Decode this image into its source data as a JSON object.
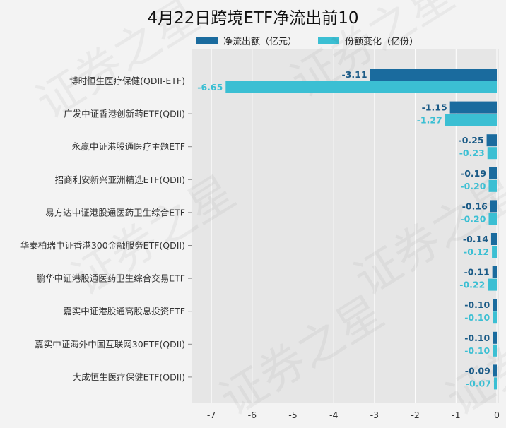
{
  "chart_data": {
    "type": "bar",
    "orientation": "horizontal",
    "title": "4月22日跨境ETF净流出前10",
    "categories": [
      "博时恒生医疗保健(QDII-ETF)",
      "广发中证香港创新药ETF(QDII)",
      "永赢中证港股通医疗主题ETF",
      "招商利安新兴亚洲精选ETF(QDII)",
      "易方达中证港股通医药卫生综合ETF",
      "华泰柏瑞中证香港300金融服务ETF(QDII)",
      "鹏华中证港股通医药卫生综合交易ETF",
      "嘉实中证港股通高股息投资ETF",
      "嘉实中证海外中国互联网30ETF(QDII)",
      "大成恒生医疗保健ETF(QDII)"
    ],
    "series": [
      {
        "name": "净流出额（亿元）",
        "color": "#1a6b9e",
        "values": [
          -3.11,
          -1.15,
          -0.25,
          -0.19,
          -0.16,
          -0.14,
          -0.11,
          -0.1,
          -0.1,
          -0.09
        ],
        "labels": [
          "-3.11",
          "-1.15",
          "-0.25",
          "-0.19",
          "-0.16",
          "-0.14",
          "-0.11",
          "-0.10",
          "-0.10",
          "-0.09"
        ]
      },
      {
        "name": "份额变化（亿份）",
        "color": "#3bbfd3",
        "values": [
          -6.65,
          -1.27,
          -0.23,
          -0.2,
          -0.2,
          -0.12,
          -0.22,
          -0.1,
          -0.1,
          -0.07
        ],
        "labels": [
          "-6.65",
          "-1.27",
          "-0.23",
          "-0.20",
          "-0.20",
          "-0.12",
          "-0.22",
          "-0.10",
          "-0.10",
          "-0.07"
        ]
      }
    ],
    "xlim": [
      -7.5,
      0
    ],
    "xticks": [
      -7,
      -6,
      -5,
      -4,
      -3,
      -2,
      -1,
      0
    ],
    "xtick_labels": [
      "-7",
      "-6",
      "-5",
      "-4",
      "-3",
      "-2",
      "-1",
      "0"
    ],
    "grid": true,
    "legend_position": "top"
  },
  "watermark": "证券之星"
}
